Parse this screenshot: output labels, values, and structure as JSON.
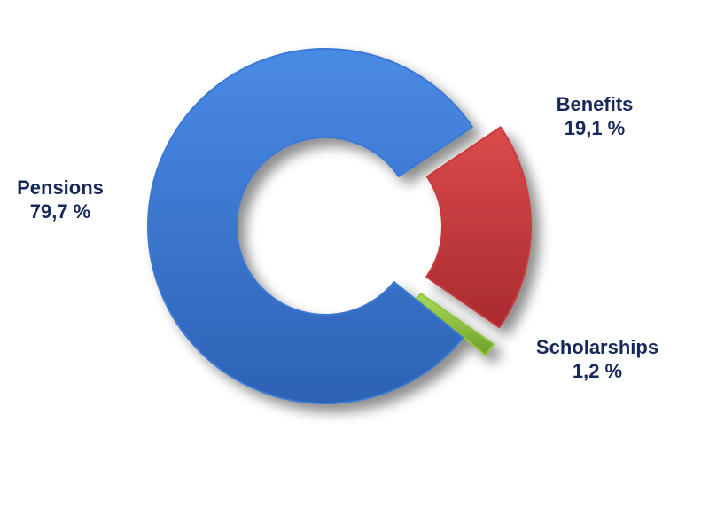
{
  "chart_data": {
    "type": "pie",
    "style": "donut, exploded segments",
    "title": "",
    "legend": "none (direct labels)",
    "slices": [
      {
        "label": "Pensions",
        "value": 79.7,
        "value_text": "79,7 %",
        "color": "#3a78d4"
      },
      {
        "label": "Benefits",
        "value": 19.1,
        "value_text": "19,1 %",
        "color": "#c73a3c"
      },
      {
        "label": "Scholarships",
        "value": 1.2,
        "value_text": "1,2 %",
        "color": "#8fc43a"
      }
    ]
  }
}
